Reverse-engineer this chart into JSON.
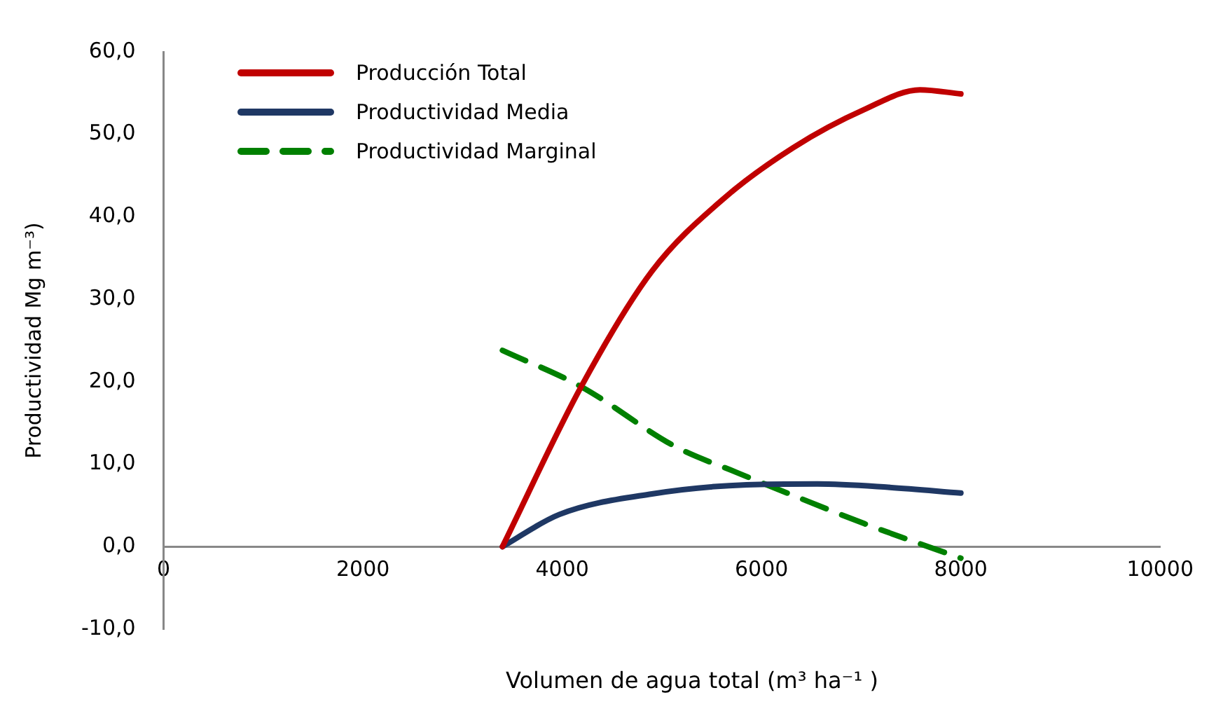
{
  "chart_data": {
    "type": "line",
    "xlabel": "Volumen de agua total (m³ ha⁻¹ )",
    "ylabel": "Productividad Mg m⁻³)",
    "xlim": [
      0,
      10000
    ],
    "xticks": [
      0,
      2000,
      4000,
      6000,
      8000,
      10000
    ],
    "ylim": [
      -10,
      60
    ],
    "yticks": [
      {
        "value": -10,
        "label": "-10,0"
      },
      {
        "value": 0,
        "label": "0,0"
      },
      {
        "value": 10,
        "label": "10,0"
      },
      {
        "value": 20,
        "label": "20,0"
      },
      {
        "value": 30,
        "label": "30,0"
      },
      {
        "value": 40,
        "label": "40,0"
      },
      {
        "value": 50,
        "label": "50,0"
      },
      {
        "value": 60,
        "label": "60,0"
      }
    ],
    "grid": false,
    "legend": "top left",
    "marker": "none",
    "series": [
      {
        "name": "Producción Total",
        "color": "#c00000",
        "line_style": "solid",
        "x": [
          3400,
          4190,
          4900,
          5610,
          6320,
          7030,
          7590,
          8000
        ],
        "values": [
          0,
          19.4,
          33.4,
          42.1,
          48.4,
          53,
          55.4,
          54.9
        ]
      },
      {
        "name": "Productividad Media",
        "color": "#1f3864",
        "line_style": "solid",
        "x": [
          3400,
          3970,
          4900,
          5850,
          6560,
          7270,
          8000
        ],
        "values": [
          0,
          3.9,
          6.4,
          7.5,
          7.6,
          7.2,
          6.5
        ]
      },
      {
        "name": "Productividad Marginal",
        "color": "#008000",
        "line_style": "dashed",
        "x": [
          3400,
          4190,
          5140,
          5750,
          6320,
          7030,
          8000
        ],
        "values": [
          23.8,
          19.4,
          12.1,
          9,
          6.2,
          2.8,
          -1.4
        ]
      }
    ]
  }
}
